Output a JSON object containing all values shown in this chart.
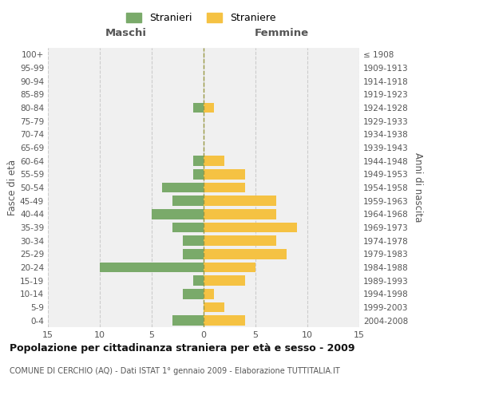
{
  "age_groups": [
    "0-4",
    "5-9",
    "10-14",
    "15-19",
    "20-24",
    "25-29",
    "30-34",
    "35-39",
    "40-44",
    "45-49",
    "50-54",
    "55-59",
    "60-64",
    "65-69",
    "70-74",
    "75-79",
    "80-84",
    "85-89",
    "90-94",
    "95-99",
    "100+"
  ],
  "birth_years": [
    "2004-2008",
    "1999-2003",
    "1994-1998",
    "1989-1993",
    "1984-1988",
    "1979-1983",
    "1974-1978",
    "1969-1973",
    "1964-1968",
    "1959-1963",
    "1954-1958",
    "1949-1953",
    "1944-1948",
    "1939-1943",
    "1934-1938",
    "1929-1933",
    "1924-1928",
    "1919-1923",
    "1914-1918",
    "1909-1913",
    "≤ 1908"
  ],
  "males": [
    3,
    0,
    2,
    1,
    10,
    2,
    2,
    3,
    5,
    3,
    4,
    1,
    1,
    0,
    0,
    0,
    1,
    0,
    0,
    0,
    0
  ],
  "females": [
    4,
    2,
    1,
    4,
    5,
    8,
    7,
    9,
    7,
    7,
    4,
    4,
    2,
    0,
    0,
    0,
    1,
    0,
    0,
    0,
    0
  ],
  "male_color": "#7aaa6a",
  "female_color": "#f5c243",
  "background_color": "#f0f0f0",
  "title": "Popolazione per cittadinanza straniera per età e sesso - 2009",
  "subtitle": "COMUNE DI CERCHIO (AQ) - Dati ISTAT 1° gennaio 2009 - Elaborazione TUTTITALIA.IT",
  "xlabel_left": "Maschi",
  "xlabel_right": "Femmine",
  "ylabel_left": "Fasce di età",
  "ylabel_right": "Anni di nascita",
  "legend_male": "Stranieri",
  "legend_female": "Straniere",
  "xlim": 15,
  "grid_color": "#cccccc"
}
